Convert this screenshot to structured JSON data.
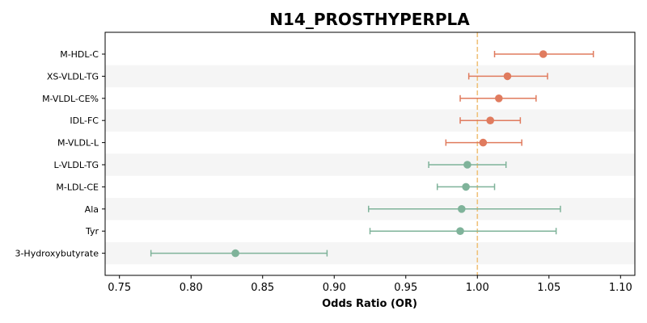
{
  "chart_data": {
    "type": "forest",
    "title": "N14_PROSTHYPERPLA",
    "xlabel": "Odds Ratio (OR)",
    "xlim": [
      0.74,
      1.11
    ],
    "xticks": [
      0.75,
      0.8,
      0.85,
      0.9,
      0.95,
      1.0,
      1.05,
      1.1
    ],
    "reference_line": 1.0,
    "reference_color": "#f0c27b",
    "positive_color": "#e07b5e",
    "negative_color": "#7fb39a",
    "band_color": "#f5f5f5",
    "grid": false,
    "rows": [
      {
        "label": "M-HDL-C",
        "or": 1.046,
        "lower": 1.012,
        "upper": 1.081
      },
      {
        "label": "XS-VLDL-TG",
        "or": 1.021,
        "lower": 0.994,
        "upper": 1.049
      },
      {
        "label": "M-VLDL-CE%",
        "or": 1.015,
        "lower": 0.988,
        "upper": 1.041
      },
      {
        "label": "IDL-FC",
        "or": 1.009,
        "lower": 0.988,
        "upper": 1.03
      },
      {
        "label": "M-VLDL-L",
        "or": 1.004,
        "lower": 0.978,
        "upper": 1.031
      },
      {
        "label": "L-VLDL-TG",
        "or": 0.993,
        "lower": 0.966,
        "upper": 1.02
      },
      {
        "label": "M-LDL-CE",
        "or": 0.992,
        "lower": 0.972,
        "upper": 1.012
      },
      {
        "label": "Ala",
        "or": 0.989,
        "lower": 0.924,
        "upper": 1.058
      },
      {
        "label": "Tyr",
        "or": 0.988,
        "lower": 0.925,
        "upper": 1.055
      },
      {
        "label": "3-Hydroxybutyrate",
        "or": 0.831,
        "lower": 0.772,
        "upper": 0.895
      }
    ]
  }
}
